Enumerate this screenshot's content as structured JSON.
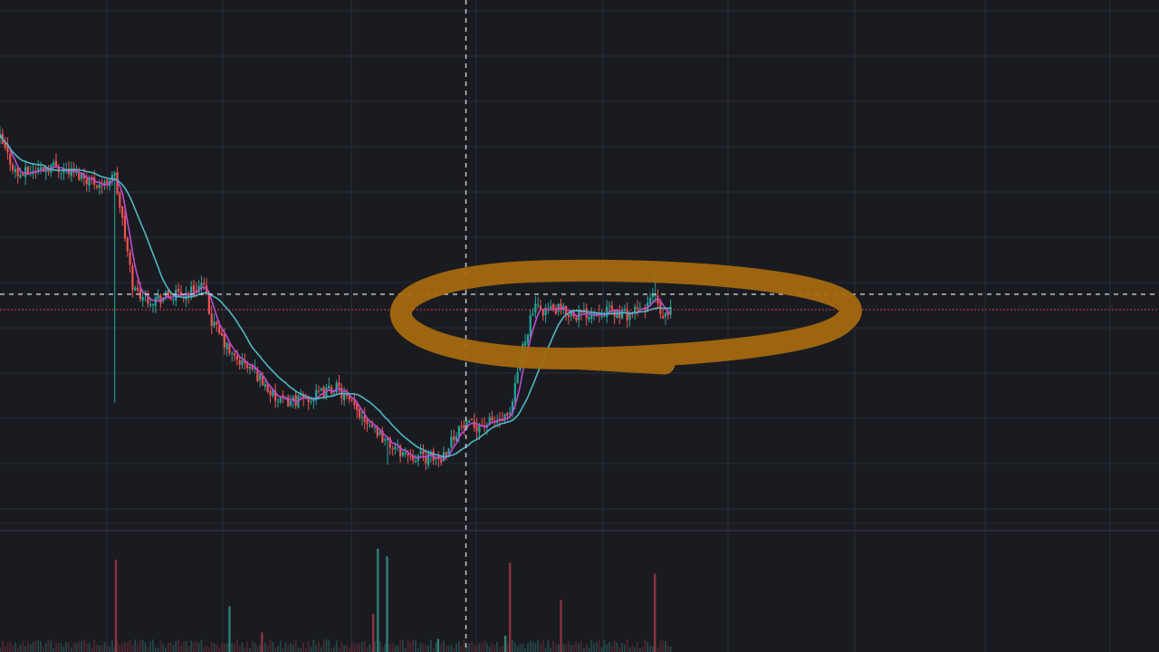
{
  "colors": {
    "background": "#1a1b21",
    "grid": "#2b2d36",
    "bull": "#26a69a",
    "bear": "#ef5350",
    "ma_fast": "#c04bd1",
    "ma_slow": "#4fb8c4",
    "crosshair": "#c9ccd6",
    "last_price_line": "#d2404a",
    "annotation": "#a86a0e",
    "volume_bull": "#2f7f73",
    "volume_bear": "#8a3340"
  },
  "chart_data": {
    "type": "candlestick",
    "theme": "dark",
    "grid": true,
    "x_range": [
      0,
      1000
    ],
    "y_range": [
      0,
      100
    ],
    "price_anchors": [
      {
        "x": 0,
        "y": 73
      },
      {
        "x": 15,
        "y": 66
      },
      {
        "x": 30,
        "y": 67
      },
      {
        "x": 45,
        "y": 68
      },
      {
        "x": 70,
        "y": 66
      },
      {
        "x": 90,
        "y": 64
      },
      {
        "x": 98,
        "y": 67
      },
      {
        "x": 105,
        "y": 58
      },
      {
        "x": 115,
        "y": 44
      },
      {
        "x": 130,
        "y": 42
      },
      {
        "x": 160,
        "y": 43
      },
      {
        "x": 175,
        "y": 45
      },
      {
        "x": 182,
        "y": 38
      },
      {
        "x": 200,
        "y": 31
      },
      {
        "x": 220,
        "y": 28
      },
      {
        "x": 240,
        "y": 22
      },
      {
        "x": 270,
        "y": 23
      },
      {
        "x": 290,
        "y": 25
      },
      {
        "x": 305,
        "y": 21
      },
      {
        "x": 320,
        "y": 18
      },
      {
        "x": 335,
        "y": 14
      },
      {
        "x": 350,
        "y": 12
      },
      {
        "x": 380,
        "y": 11
      },
      {
        "x": 395,
        "y": 17
      },
      {
        "x": 420,
        "y": 18
      },
      {
        "x": 440,
        "y": 19
      },
      {
        "x": 450,
        "y": 32
      },
      {
        "x": 460,
        "y": 40
      },
      {
        "x": 480,
        "y": 40
      },
      {
        "x": 500,
        "y": 39
      },
      {
        "x": 520,
        "y": 40
      },
      {
        "x": 540,
        "y": 39
      },
      {
        "x": 555,
        "y": 40
      },
      {
        "x": 565,
        "y": 43
      },
      {
        "x": 570,
        "y": 38
      },
      {
        "x": 580,
        "y": 40
      }
    ],
    "moving_averages": [
      {
        "period": "fast"
      },
      {
        "period": "slow"
      }
    ],
    "crosshair": {
      "x": 402,
      "y": 43
    },
    "last_price": 40,
    "annotation": {
      "shape": "ellipse",
      "x_range": [
        330,
        710
      ],
      "y_range": [
        33,
        46
      ]
    },
    "volume_spikes": [
      {
        "x": 100,
        "v": 0.85,
        "dir": "down"
      },
      {
        "x": 198,
        "v": 0.42,
        "dir": "up"
      },
      {
        "x": 226,
        "v": 0.18,
        "dir": "down"
      },
      {
        "x": 326,
        "v": 0.95,
        "dir": "up"
      },
      {
        "x": 334,
        "v": 0.88,
        "dir": "up"
      },
      {
        "x": 322,
        "v": 0.35,
        "dir": "down"
      },
      {
        "x": 378,
        "v": 0.12,
        "dir": "up"
      },
      {
        "x": 436,
        "v": 0.15,
        "dir": "up"
      },
      {
        "x": 440,
        "v": 0.82,
        "dir": "down"
      },
      {
        "x": 484,
        "v": 0.48,
        "dir": "down"
      },
      {
        "x": 565,
        "v": 0.72,
        "dir": "down"
      }
    ]
  }
}
